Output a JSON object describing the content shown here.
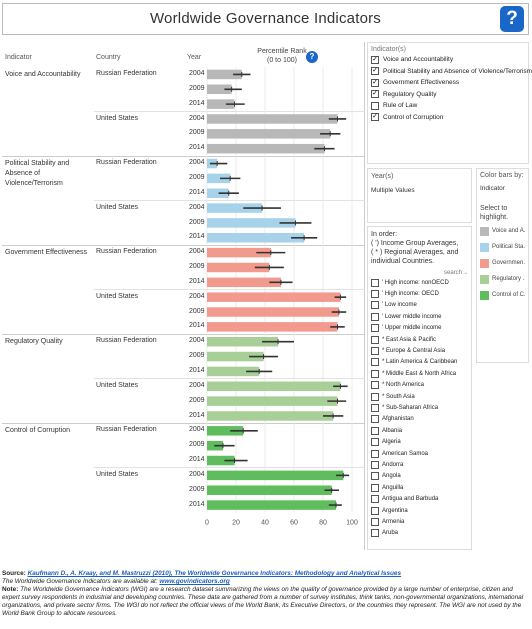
{
  "header": {
    "title": "Worldwide Governance Indicators",
    "help_icon": "?"
  },
  "columns": {
    "indicator": "Indicator",
    "country": "Country",
    "year": "Year",
    "percentile_rank": "Percentile Rank",
    "percentile_range": "(0 to 100)"
  },
  "colors": {
    "voice": "#b8b8b8",
    "stability": "#a7d3ea",
    "effectiveness": "#f29a8e",
    "regulatory": "#a8cf98",
    "corruption": "#5fbd5e",
    "error_bar": "#333333"
  },
  "chart_data": {
    "type": "bar",
    "orientation": "horizontal",
    "xlim": [
      0,
      100
    ],
    "xticks": [
      "0",
      "20",
      "40",
      "60",
      "80",
      "100"
    ],
    "groups": [
      {
        "indicator": "Voice and Accountability",
        "color_key": "voice",
        "countries": [
          {
            "name": "Russian Federation",
            "years": [
              "2004",
              "2009",
              "2014"
            ],
            "values": [
              24,
              17,
              19
            ],
            "low": [
              18,
              12,
              13
            ],
            "high": [
              30,
              24,
              26
            ]
          },
          {
            "name": "United States",
            "years": [
              "2004",
              "2009",
              "2014"
            ],
            "values": [
              90,
              85,
              81
            ],
            "low": [
              84,
              78,
              74
            ],
            "high": [
              96,
              92,
              88
            ]
          }
        ]
      },
      {
        "indicator": "Political Stability and Absence of Violence/Terrorism",
        "color_key": "stability",
        "countries": [
          {
            "name": "Russian Federation",
            "years": [
              "2004",
              "2009",
              "2014"
            ],
            "values": [
              7,
              16,
              15
            ],
            "low": [
              2,
              9,
              8
            ],
            "high": [
              14,
              23,
              22
            ]
          },
          {
            "name": "United States",
            "years": [
              "2004",
              "2009",
              "2014"
            ],
            "values": [
              38,
              61,
              67
            ],
            "low": [
              25,
              50,
              58
            ],
            "high": [
              51,
              72,
              76
            ]
          }
        ]
      },
      {
        "indicator": "Government Effectiveness",
        "color_key": "effectiveness",
        "countries": [
          {
            "name": "Russian Federation",
            "years": [
              "2004",
              "2009",
              "2014"
            ],
            "values": [
              44,
              43,
              51
            ],
            "low": [
              34,
              33,
              43
            ],
            "high": [
              54,
              53,
              59
            ]
          },
          {
            "name": "United States",
            "years": [
              "2004",
              "2009",
              "2014"
            ],
            "values": [
              92,
              91,
              90
            ],
            "low": [
              88,
              86,
              85
            ],
            "high": [
              96,
              96,
              95
            ]
          }
        ]
      },
      {
        "indicator": "Regulatory Quality",
        "color_key": "regulatory",
        "countries": [
          {
            "name": "Russian Federation",
            "years": [
              "2004",
              "2009",
              "2014"
            ],
            "values": [
              49,
              39,
              36
            ],
            "low": [
              38,
              29,
              27
            ],
            "high": [
              60,
              49,
              45
            ]
          },
          {
            "name": "United States",
            "years": [
              "2004",
              "2009",
              "2014"
            ],
            "values": [
              92,
              90,
              87
            ],
            "low": [
              87,
              83,
              80
            ],
            "high": [
              97,
              96,
              94
            ]
          }
        ]
      },
      {
        "indicator": "Control of Corruption",
        "color_key": "corruption",
        "countries": [
          {
            "name": "Russian Federation",
            "years": [
              "2004",
              "2009",
              "2014"
            ],
            "values": [
              25,
              11,
              19
            ],
            "low": [
              16,
              5,
              12
            ],
            "high": [
              35,
              19,
              28
            ]
          },
          {
            "name": "United States",
            "years": [
              "2004",
              "2009",
              "2014"
            ],
            "values": [
              94,
              86,
              89
            ],
            "low": [
              89,
              81,
              84
            ],
            "high": [
              98,
              91,
              93
            ]
          }
        ]
      }
    ]
  },
  "indicator_filter": {
    "title": "Indicator(s)",
    "items": [
      {
        "label": "Voice and Accountability",
        "checked": true
      },
      {
        "label": "Political Stability and Absence of Violence/Terrorism",
        "checked": true
      },
      {
        "label": "Government Effectiveness",
        "checked": true
      },
      {
        "label": "Regulatory Quality",
        "checked": true
      },
      {
        "label": "Rule of Law",
        "checked": false
      },
      {
        "label": "Control of Corruption",
        "checked": true
      }
    ]
  },
  "year_filter": {
    "title": "Year(s)",
    "value": "Multiple Values"
  },
  "color_by": {
    "title": "Color bars by:",
    "value": "Indicator",
    "hint": "Select to highlight.",
    "legend": [
      {
        "label": "Voice and A..",
        "color_key": "voice"
      },
      {
        "label": "Political Sta..",
        "color_key": "stability"
      },
      {
        "label": "Governmen..",
        "color_key": "effectiveness"
      },
      {
        "label": "Regulatory ..",
        "color_key": "regulatory"
      },
      {
        "label": "Control of C..",
        "color_key": "corruption"
      }
    ]
  },
  "country_filter": {
    "title": "In order:",
    "note_1": "( ') Income Group Averages,",
    "note_2": "( * ) Regional Averages, and",
    "note_3": "individual Countries.",
    "search": "search→",
    "items": [
      "' High income: nonOECD",
      "' High income: OECD",
      "' Low income",
      "' Lower middle income",
      "' Upper middle income",
      "* East Asia & Pacific",
      "* Europe & Central Asia",
      "* Latin America & Caribbean",
      "* Middle East & North Africa",
      "* North America",
      "* South Asia",
      "* Sub-Saharan Africa",
      "Afghanistan",
      "Albania",
      "Algeria",
      "American Samoa",
      "Andorra",
      "Angola",
      "Anguilla",
      "Antigua and Barbuda",
      "Argentina",
      "Armenia",
      "Aruba"
    ]
  },
  "footer": {
    "source_label": "Source:",
    "source_link": "Kaufmann D., A. Kraay, and M. Mastruzzi (2010), The Worldwide Governance Indicators: Methodology and Analytical Issues",
    "available_text": "The Worldwide Governance Indicators are available at:",
    "available_link": "www.govindicators.org",
    "note_label": "Note:",
    "note_text": "The Worldwide Governance Indicators (WGI) are a research dataset summarizing the views on the quality of governance provided by a large number of enterprise, citizen and expert survey respondents in industrial and developing countries. These data are gathered from a number of survey institutes, think tanks, non-governmental organizations, international organizations, and private sector firms. The WGI do not reflect the official views of the World Bank, its Executive Directors, or the countries they represent. The WGI are not used by the World Bank Group to allocate resources."
  }
}
